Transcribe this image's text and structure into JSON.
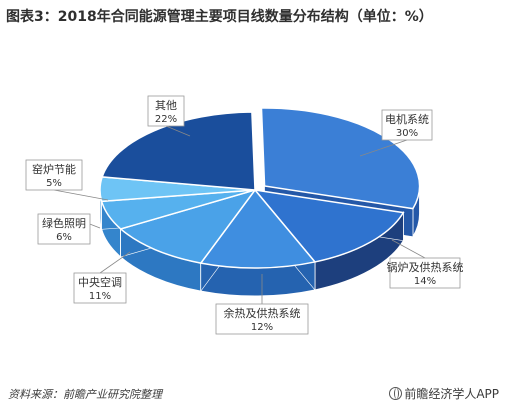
{
  "title": "图表3：2018年合同能源管理主要项目线数量分布结构（单位：%）",
  "source": "资料来源：前瞻产业研究院整理",
  "brand": "前瞻经济学人APP",
  "colors": {
    "top": [
      "#3b7fd6",
      "#2f73cf",
      "#3f8ee0",
      "#4aa2e8",
      "#56b1ee",
      "#6ec4f5",
      "#1a4e9c"
    ],
    "side": [
      "#2458a8",
      "#1d3f7d",
      "#2563b0",
      "#2d78c2",
      "#3485cc",
      "#4a9ad8",
      "#0f2f66"
    ]
  },
  "chart_data": {
    "type": "pie",
    "categories": [
      "电机系统",
      "锅炉及供热系统",
      "余热及供热系统",
      "中央空调",
      "绿色照明",
      "窑炉节能",
      "其他"
    ],
    "values": [
      30,
      14,
      12,
      11,
      6,
      5,
      22
    ],
    "labels": [
      "30%",
      "14%",
      "12%",
      "11%",
      "6%",
      "5%",
      "22%"
    ],
    "exploded": [
      "电机系统"
    ]
  }
}
